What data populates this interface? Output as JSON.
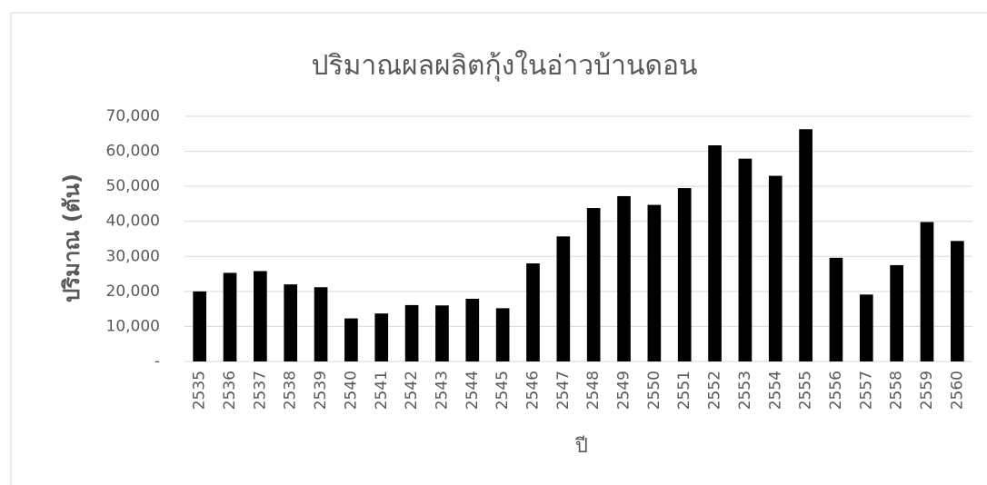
{
  "chart_data": {
    "type": "bar",
    "title": "ปริมาณผลผลิตกุ้งในอ่าวบ้านดอน",
    "x_label": "ปี",
    "y_label": "ปริมาณ (ตัน)",
    "categories": [
      "2535",
      "2536",
      "2537",
      "2538",
      "2539",
      "2540",
      "2541",
      "2542",
      "2543",
      "2544",
      "2545",
      "2546",
      "2547",
      "2548",
      "2549",
      "2550",
      "2551",
      "2552",
      "2553",
      "2554",
      "2555",
      "2556",
      "2557",
      "2558",
      "2559",
      "2560"
    ],
    "values": [
      20000,
      25300,
      25800,
      22000,
      21200,
      12300,
      13700,
      16100,
      16000,
      17900,
      15200,
      28000,
      35700,
      43800,
      47200,
      44700,
      49500,
      61700,
      57900,
      53000,
      66300,
      29600,
      19100,
      27500,
      39800,
      34400
    ],
    "color": "#000000",
    "ylim": [
      0,
      70000
    ],
    "yticks": [
      {
        "value": 0,
        "label": "-"
      },
      {
        "value": 10000,
        "label": "10,000"
      },
      {
        "value": 20000,
        "label": "20,000"
      },
      {
        "value": 30000,
        "label": "30,000"
      },
      {
        "value": 40000,
        "label": "40,000"
      },
      {
        "value": 50000,
        "label": "50,000"
      },
      {
        "value": 60000,
        "label": "60,000"
      },
      {
        "value": 70000,
        "label": "70,000"
      }
    ],
    "grid": true
  }
}
